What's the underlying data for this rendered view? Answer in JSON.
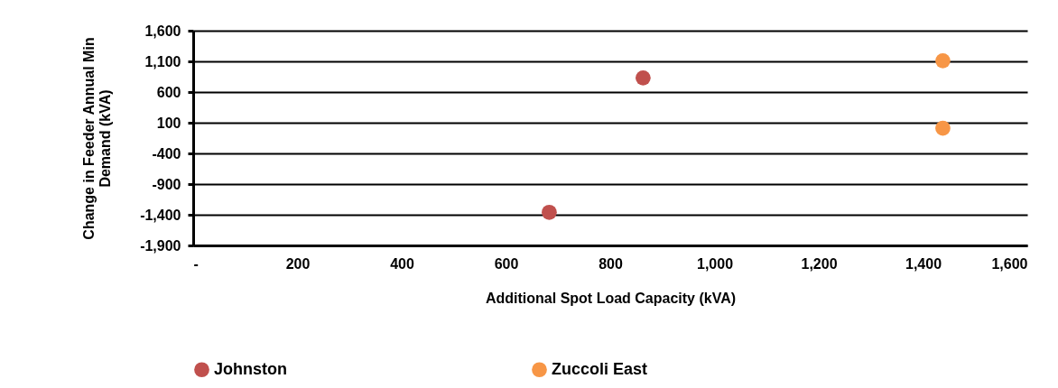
{
  "chart_data": {
    "type": "scatter",
    "xlabel": "Additional Spot Load Capacity (kVA)",
    "ylabel": "Change in Feeder Annual Min Demand (kVA)",
    "series": [
      {
        "name": "Johnston",
        "color": "#c0504d",
        "x": [
          683,
          863
        ],
        "values": [
          -1360,
          830
        ]
      },
      {
        "name": "Zuccoli East",
        "color": "#f79646",
        "x": [
          1438,
          1438
        ],
        "values": [
          1110,
          10
        ]
      }
    ],
    "xlim": [
      0,
      1600
    ],
    "xticks": [
      {
        "value": 0,
        "label": "-"
      },
      {
        "value": 200,
        "label": "200"
      },
      {
        "value": 400,
        "label": "400"
      },
      {
        "value": 600,
        "label": "600"
      },
      {
        "value": 800,
        "label": "800"
      },
      {
        "value": 1000,
        "label": "1,000"
      },
      {
        "value": 1200,
        "label": "1,200"
      },
      {
        "value": 1400,
        "label": "1,400"
      },
      {
        "value": 1600,
        "label": "1,600"
      }
    ],
    "ylim": [
      -1900,
      1600
    ],
    "yticks": [
      {
        "value": -1900,
        "label": "-1,900"
      },
      {
        "value": -1400,
        "label": "-1,400"
      },
      {
        "value": -900,
        "label": "-900"
      },
      {
        "value": -400,
        "label": "-400"
      },
      {
        "value": 100,
        "label": "100"
      },
      {
        "value": 600,
        "label": "600"
      },
      {
        "value": 1100,
        "label": "1,100"
      },
      {
        "value": 1600,
        "label": "1,600"
      }
    ],
    "grid": "y",
    "legend": "bottom",
    "marker": "circle"
  }
}
